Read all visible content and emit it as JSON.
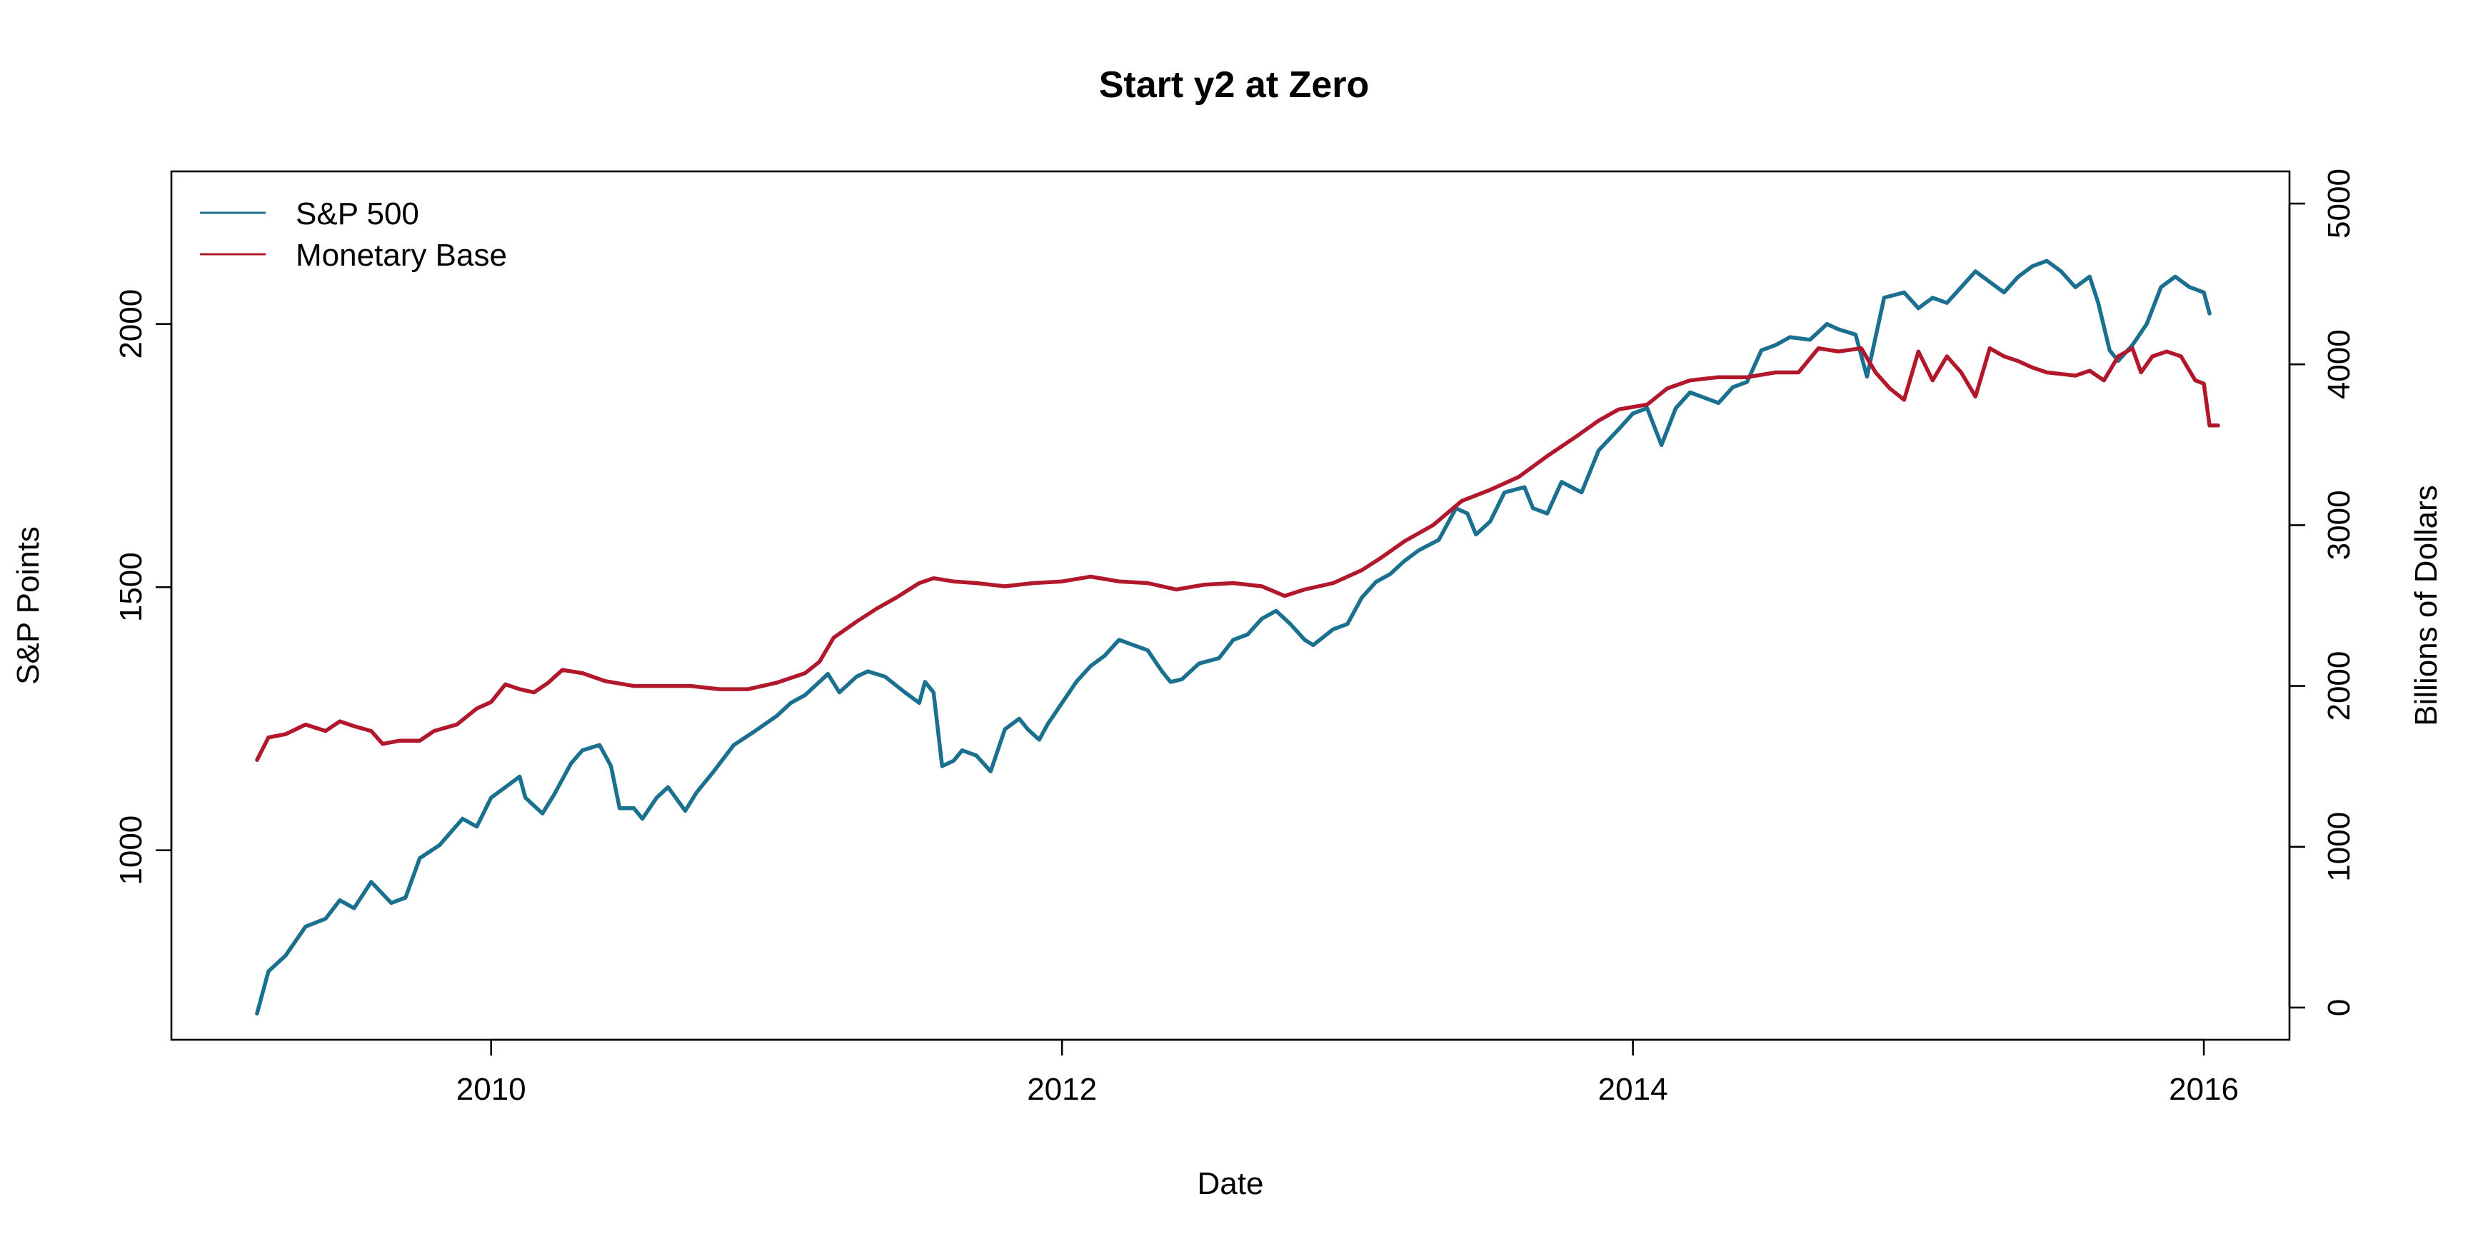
{
  "chart_data": {
    "type": "line",
    "title": "Start y2 at Zero",
    "xlabel": "Date",
    "ylabel": "S&P Points",
    "y2label": "Billions of Dollars",
    "xlim": [
      2008.88,
      2016.3
    ],
    "ylim": [
      640,
      2290
    ],
    "y2lim": [
      -200,
      5200
    ],
    "x_ticks": [
      2010,
      2012,
      2014,
      2016
    ],
    "x_tick_labels": [
      "2010",
      "2012",
      "2014",
      "2016"
    ],
    "y_ticks": [
      1000,
      1500,
      2000
    ],
    "y_tick_labels": [
      "1000",
      "1500",
      "2000"
    ],
    "y2_ticks": [
      0,
      1000,
      2000,
      3000,
      4000,
      5000
    ],
    "y2_tick_labels": [
      "0",
      "1000",
      "2000",
      "3000",
      "4000",
      "5000"
    ],
    "grid": false,
    "legend": {
      "position": "top-left",
      "entries": [
        {
          "label": "S&P 500",
          "color": "#1b6f8f"
        },
        {
          "label": "Monetary Base",
          "color": "#b2182b"
        }
      ]
    },
    "series": [
      {
        "name": "S&P 500",
        "axis": "left",
        "color": "#1b6f8f",
        "points": [
          [
            2009.18,
            690
          ],
          [
            2009.22,
            770
          ],
          [
            2009.28,
            800
          ],
          [
            2009.35,
            855
          ],
          [
            2009.42,
            870
          ],
          [
            2009.47,
            905
          ],
          [
            2009.52,
            890
          ],
          [
            2009.58,
            940
          ],
          [
            2009.65,
            900
          ],
          [
            2009.7,
            910
          ],
          [
            2009.75,
            985
          ],
          [
            2009.82,
            1010
          ],
          [
            2009.9,
            1060
          ],
          [
            2009.95,
            1045
          ],
          [
            2010.0,
            1100
          ],
          [
            2010.05,
            1120
          ],
          [
            2010.1,
            1140
          ],
          [
            2010.12,
            1100
          ],
          [
            2010.18,
            1070
          ],
          [
            2010.22,
            1105
          ],
          [
            2010.28,
            1165
          ],
          [
            2010.32,
            1190
          ],
          [
            2010.38,
            1200
          ],
          [
            2010.42,
            1160
          ],
          [
            2010.45,
            1080
          ],
          [
            2010.5,
            1080
          ],
          [
            2010.53,
            1060
          ],
          [
            2010.58,
            1100
          ],
          [
            2010.62,
            1120
          ],
          [
            2010.68,
            1075
          ],
          [
            2010.72,
            1110
          ],
          [
            2010.78,
            1150
          ],
          [
            2010.85,
            1200
          ],
          [
            2010.92,
            1225
          ],
          [
            2011.0,
            1255
          ],
          [
            2011.05,
            1280
          ],
          [
            2011.1,
            1295
          ],
          [
            2011.15,
            1320
          ],
          [
            2011.18,
            1335
          ],
          [
            2011.22,
            1300
          ],
          [
            2011.28,
            1330
          ],
          [
            2011.32,
            1340
          ],
          [
            2011.38,
            1330
          ],
          [
            2011.45,
            1300
          ],
          [
            2011.5,
            1280
          ],
          [
            2011.52,
            1320
          ],
          [
            2011.55,
            1300
          ],
          [
            2011.58,
            1160
          ],
          [
            2011.62,
            1170
          ],
          [
            2011.65,
            1190
          ],
          [
            2011.7,
            1180
          ],
          [
            2011.75,
            1150
          ],
          [
            2011.8,
            1230
          ],
          [
            2011.85,
            1250
          ],
          [
            2011.88,
            1230
          ],
          [
            2011.92,
            1210
          ],
          [
            2011.95,
            1240
          ],
          [
            2012.0,
            1280
          ],
          [
            2012.05,
            1320
          ],
          [
            2012.1,
            1350
          ],
          [
            2012.15,
            1370
          ],
          [
            2012.2,
            1400
          ],
          [
            2012.25,
            1390
          ],
          [
            2012.3,
            1380
          ],
          [
            2012.35,
            1340
          ],
          [
            2012.38,
            1320
          ],
          [
            2012.42,
            1325
          ],
          [
            2012.48,
            1355
          ],
          [
            2012.55,
            1365
          ],
          [
            2012.6,
            1400
          ],
          [
            2012.65,
            1410
          ],
          [
            2012.7,
            1440
          ],
          [
            2012.75,
            1455
          ],
          [
            2012.8,
            1430
          ],
          [
            2012.85,
            1400
          ],
          [
            2012.88,
            1390
          ],
          [
            2012.95,
            1420
          ],
          [
            2013.0,
            1430
          ],
          [
            2013.05,
            1480
          ],
          [
            2013.1,
            1510
          ],
          [
            2013.15,
            1525
          ],
          [
            2013.2,
            1550
          ],
          [
            2013.25,
            1570
          ],
          [
            2013.32,
            1590
          ],
          [
            2013.38,
            1650
          ],
          [
            2013.42,
            1640
          ],
          [
            2013.45,
            1600
          ],
          [
            2013.5,
            1625
          ],
          [
            2013.55,
            1680
          ],
          [
            2013.62,
            1690
          ],
          [
            2013.65,
            1650
          ],
          [
            2013.7,
            1640
          ],
          [
            2013.75,
            1700
          ],
          [
            2013.82,
            1680
          ],
          [
            2013.88,
            1760
          ],
          [
            2013.95,
            1800
          ],
          [
            2014.0,
            1830
          ],
          [
            2014.05,
            1840
          ],
          [
            2014.1,
            1770
          ],
          [
            2014.15,
            1840
          ],
          [
            2014.2,
            1870
          ],
          [
            2014.25,
            1860
          ],
          [
            2014.3,
            1850
          ],
          [
            2014.35,
            1880
          ],
          [
            2014.4,
            1890
          ],
          [
            2014.45,
            1950
          ],
          [
            2014.5,
            1960
          ],
          [
            2014.55,
            1975
          ],
          [
            2014.62,
            1970
          ],
          [
            2014.68,
            2000
          ],
          [
            2014.72,
            1990
          ],
          [
            2014.78,
            1980
          ],
          [
            2014.82,
            1900
          ],
          [
            2014.88,
            2050
          ],
          [
            2014.95,
            2060
          ],
          [
            2015.0,
            2030
          ],
          [
            2015.05,
            2050
          ],
          [
            2015.1,
            2040
          ],
          [
            2015.15,
            2070
          ],
          [
            2015.2,
            2100
          ],
          [
            2015.25,
            2080
          ],
          [
            2015.3,
            2060
          ],
          [
            2015.35,
            2090
          ],
          [
            2015.4,
            2110
          ],
          [
            2015.45,
            2120
          ],
          [
            2015.5,
            2100
          ],
          [
            2015.55,
            2070
          ],
          [
            2015.6,
            2090
          ],
          [
            2015.63,
            2040
          ],
          [
            2015.67,
            1950
          ],
          [
            2015.7,
            1930
          ],
          [
            2015.75,
            1960
          ],
          [
            2015.8,
            2000
          ],
          [
            2015.85,
            2070
          ],
          [
            2015.9,
            2090
          ],
          [
            2015.95,
            2070
          ],
          [
            2016.0,
            2060
          ],
          [
            2016.02,
            2020
          ]
        ]
      },
      {
        "name": "Monetary Base",
        "axis": "right",
        "color": "#b2182b",
        "points": [
          [
            2009.18,
            1540
          ],
          [
            2009.22,
            1680
          ],
          [
            2009.28,
            1700
          ],
          [
            2009.35,
            1760
          ],
          [
            2009.42,
            1720
          ],
          [
            2009.47,
            1780
          ],
          [
            2009.52,
            1750
          ],
          [
            2009.58,
            1720
          ],
          [
            2009.62,
            1640
          ],
          [
            2009.68,
            1660
          ],
          [
            2009.75,
            1660
          ],
          [
            2009.8,
            1720
          ],
          [
            2009.88,
            1760
          ],
          [
            2009.95,
            1860
          ],
          [
            2010.0,
            1900
          ],
          [
            2010.05,
            2010
          ],
          [
            2010.1,
            1980
          ],
          [
            2010.15,
            1960
          ],
          [
            2010.2,
            2020
          ],
          [
            2010.25,
            2100
          ],
          [
            2010.32,
            2080
          ],
          [
            2010.4,
            2030
          ],
          [
            2010.5,
            2000
          ],
          [
            2010.6,
            2000
          ],
          [
            2010.7,
            2000
          ],
          [
            2010.8,
            1980
          ],
          [
            2010.9,
            1980
          ],
          [
            2011.0,
            2020
          ],
          [
            2011.1,
            2080
          ],
          [
            2011.15,
            2150
          ],
          [
            2011.2,
            2300
          ],
          [
            2011.28,
            2400
          ],
          [
            2011.35,
            2480
          ],
          [
            2011.42,
            2550
          ],
          [
            2011.5,
            2640
          ],
          [
            2011.55,
            2670
          ],
          [
            2011.62,
            2650
          ],
          [
            2011.7,
            2640
          ],
          [
            2011.8,
            2620
          ],
          [
            2011.9,
            2640
          ],
          [
            2012.0,
            2650
          ],
          [
            2012.1,
            2680
          ],
          [
            2012.2,
            2650
          ],
          [
            2012.3,
            2640
          ],
          [
            2012.4,
            2600
          ],
          [
            2012.5,
            2630
          ],
          [
            2012.6,
            2640
          ],
          [
            2012.7,
            2620
          ],
          [
            2012.78,
            2560
          ],
          [
            2012.85,
            2600
          ],
          [
            2012.95,
            2640
          ],
          [
            2013.05,
            2720
          ],
          [
            2013.12,
            2800
          ],
          [
            2013.2,
            2900
          ],
          [
            2013.3,
            3000
          ],
          [
            2013.4,
            3150
          ],
          [
            2013.5,
            3220
          ],
          [
            2013.6,
            3300
          ],
          [
            2013.7,
            3430
          ],
          [
            2013.8,
            3550
          ],
          [
            2013.88,
            3650
          ],
          [
            2013.95,
            3720
          ],
          [
            2014.05,
            3750
          ],
          [
            2014.12,
            3850
          ],
          [
            2014.2,
            3900
          ],
          [
            2014.3,
            3920
          ],
          [
            2014.4,
            3920
          ],
          [
            2014.5,
            3950
          ],
          [
            2014.58,
            3950
          ],
          [
            2014.65,
            4100
          ],
          [
            2014.72,
            4080
          ],
          [
            2014.8,
            4100
          ],
          [
            2014.85,
            3950
          ],
          [
            2014.9,
            3850
          ],
          [
            2014.95,
            3780
          ],
          [
            2015.0,
            4080
          ],
          [
            2015.05,
            3900
          ],
          [
            2015.1,
            4050
          ],
          [
            2015.15,
            3950
          ],
          [
            2015.2,
            3800
          ],
          [
            2015.25,
            4100
          ],
          [
            2015.3,
            4050
          ],
          [
            2015.35,
            4020
          ],
          [
            2015.4,
            3980
          ],
          [
            2015.45,
            3950
          ],
          [
            2015.5,
            3940
          ],
          [
            2015.55,
            3930
          ],
          [
            2015.6,
            3960
          ],
          [
            2015.65,
            3900
          ],
          [
            2015.7,
            4050
          ],
          [
            2015.75,
            4100
          ],
          [
            2015.78,
            3950
          ],
          [
            2015.82,
            4050
          ],
          [
            2015.87,
            4080
          ],
          [
            2015.92,
            4050
          ],
          [
            2015.97,
            3900
          ],
          [
            2016.0,
            3880
          ],
          [
            2016.02,
            3620
          ],
          [
            2016.05,
            3620
          ]
        ]
      }
    ]
  }
}
